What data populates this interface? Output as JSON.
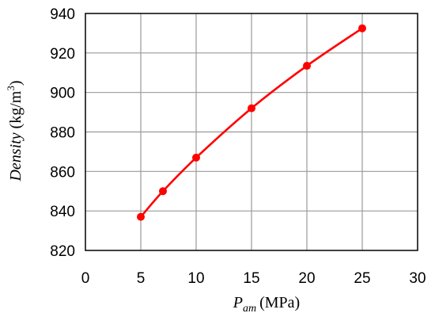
{
  "chart_data": {
    "type": "line",
    "xlabel": {
      "symbol": "P",
      "subscript": "am",
      "unit": "(MPa)"
    },
    "ylabel": {
      "name": "Density",
      "unit_prefix": "(kg/m",
      "unit_exp": "3",
      "unit_suffix": ")"
    },
    "xlim": [
      0,
      30
    ],
    "ylim": [
      820,
      940
    ],
    "xticks": [
      0,
      5,
      10,
      15,
      20,
      25,
      30
    ],
    "yticks": [
      820,
      840,
      860,
      880,
      900,
      920,
      940
    ],
    "grid": true,
    "legend": "none",
    "series": [
      {
        "color": "#ff0000",
        "marker": "circle",
        "x": [
          5,
          7,
          10,
          15,
          20,
          25
        ],
        "y": [
          837,
          850,
          867,
          892,
          913.5,
          932.5
        ]
      }
    ]
  }
}
